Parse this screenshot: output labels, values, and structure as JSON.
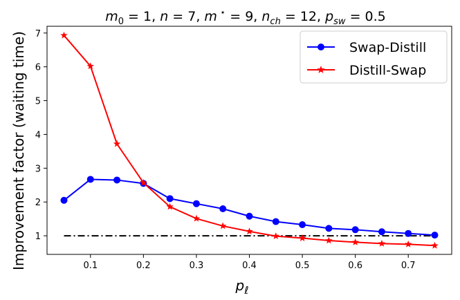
{
  "chart_data": {
    "type": "line",
    "title": "m₀ = 1, n = 7, m* = 9, n_ch = 12, p_sw = 0.5",
    "xlabel": "p_ℓ",
    "ylabel": "Improvement factor (waiting time)",
    "xlim": [
      0.018,
      0.782
    ],
    "ylim": [
      0.45,
      7.2
    ],
    "xticks": [
      0.1,
      0.2,
      0.3,
      0.4,
      0.5,
      0.6,
      0.7
    ],
    "yticks": [
      1,
      2,
      3,
      4,
      5,
      6,
      7
    ],
    "x": [
      0.05,
      0.1,
      0.15,
      0.2,
      0.25,
      0.3,
      0.35,
      0.4,
      0.45,
      0.5,
      0.55,
      0.6,
      0.65,
      0.7,
      0.75
    ],
    "series": [
      {
        "name": "Swap-Distill",
        "color": "#0000ff",
        "marker": "circle",
        "values": [
          2.05,
          2.67,
          2.65,
          2.55,
          2.1,
          1.95,
          1.8,
          1.58,
          1.42,
          1.33,
          1.22,
          1.18,
          1.12,
          1.07,
          1.02
        ]
      },
      {
        "name": "Distill-Swap",
        "color": "#ff0000",
        "marker": "star",
        "values": [
          6.93,
          6.02,
          3.72,
          2.57,
          1.86,
          1.51,
          1.29,
          1.13,
          0.99,
          0.93,
          0.86,
          0.81,
          0.77,
          0.75,
          0.71
        ]
      }
    ],
    "reference_line": {
      "y": 1,
      "x_range": [
        0.05,
        0.75
      ],
      "style": "dash-dot",
      "color": "#000000"
    },
    "legend": {
      "position": "top-right"
    }
  }
}
